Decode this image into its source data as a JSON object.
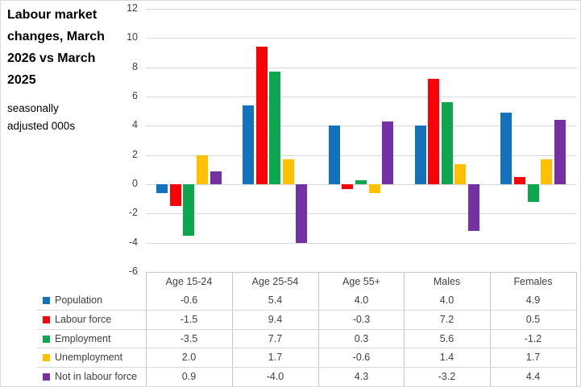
{
  "title": "Labour market changes, March 2026 vs March 2025",
  "subtitle": "seasonally adjusted 000s",
  "chart_data": {
    "type": "bar",
    "title": "Labour market changes, March 2026 vs March 2025",
    "subtitle": "seasonally adjusted 000s",
    "categories": [
      "Age 15-24",
      "Age 25-54",
      "Age 55+",
      "Males",
      "Females"
    ],
    "series": [
      {
        "name": "Population",
        "color": "#1273bc",
        "values": [
          -0.6,
          5.4,
          4.0,
          4.0,
          4.9
        ]
      },
      {
        "name": "Labour force",
        "color": "#fb0007",
        "values": [
          -1.5,
          9.4,
          -0.3,
          7.2,
          0.5
        ]
      },
      {
        "name": "Employment",
        "color": "#0ca64f",
        "values": [
          -3.5,
          7.7,
          0.3,
          5.6,
          -1.2
        ]
      },
      {
        "name": "Unemployment",
        "color": "#ffc000",
        "values": [
          2.0,
          1.7,
          -0.6,
          1.4,
          1.7
        ]
      },
      {
        "name": "Not in labour force",
        "color": "#7531a3",
        "values": [
          0.9,
          -4.0,
          4.3,
          -3.2,
          4.4
        ]
      }
    ],
    "ylim": [
      -6,
      12
    ],
    "ytick_step": 2,
    "xlabel": "",
    "ylabel": "",
    "grid": true,
    "legend_position": "data-table-left",
    "data_table": true,
    "value_decimals": 1
  },
  "colors": {
    "gridline": "#d9d9d9",
    "table_major_line": "#c6c6c6",
    "table_row_line": "#d9d9d9",
    "axis_text": "#404040",
    "frame_border": "#d9d9d9"
  }
}
